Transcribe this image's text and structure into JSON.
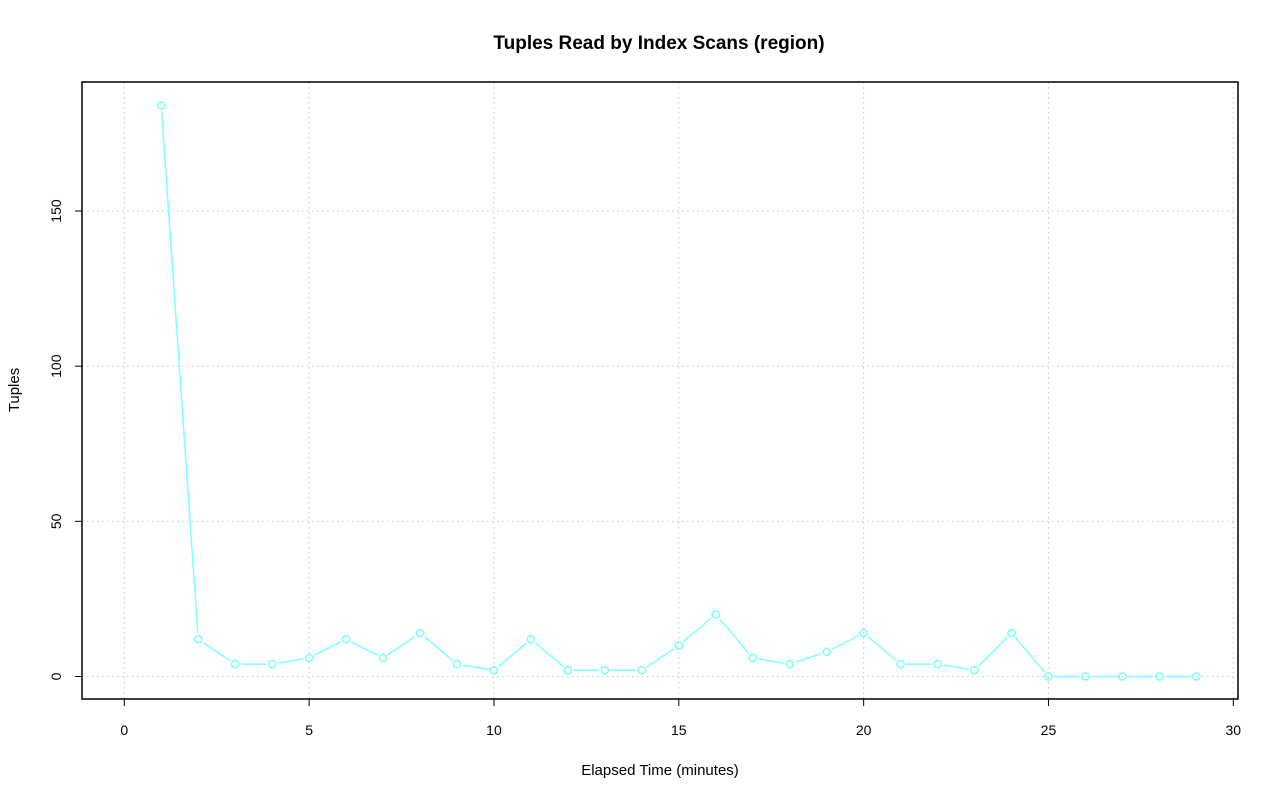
{
  "chart_data": {
    "type": "line",
    "title": "Tuples Read by Index Scans (region)",
    "xlabel": "Elapsed Time (minutes)",
    "ylabel": "Tuples",
    "xlim": [
      0,
      30
    ],
    "ylim": [
      0,
      184
    ],
    "xticks": [
      0,
      5,
      10,
      15,
      20,
      25,
      30
    ],
    "yticks": [
      0,
      50,
      100,
      150
    ],
    "grid": true,
    "series_color": "#7fffff",
    "x": [
      1,
      2,
      3,
      4,
      5,
      6,
      7,
      8,
      9,
      10,
      11,
      12,
      13,
      14,
      15,
      16,
      17,
      18,
      19,
      20,
      21,
      22,
      23,
      24,
      25,
      26,
      27,
      28,
      29
    ],
    "y": [
      184,
      12,
      4,
      4,
      6,
      12,
      6,
      14,
      4,
      2,
      12,
      2,
      2,
      2,
      10,
      20,
      6,
      4,
      8,
      14,
      4,
      4,
      2,
      14,
      0,
      0,
      0,
      0,
      0
    ]
  }
}
